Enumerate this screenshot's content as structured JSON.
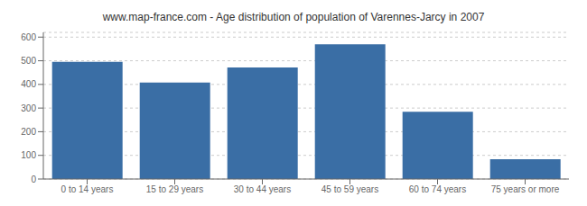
{
  "chart_data": {
    "type": "bar",
    "title": "www.map-france.com - Age distribution of population of Varennes-Jarcy in 2007",
    "categories": [
      "0 to 14 years",
      "15 to 29 years",
      "30 to 44 years",
      "45 to 59 years",
      "60 to 74 years",
      "75 years or more"
    ],
    "values": [
      495,
      408,
      472,
      570,
      284,
      84
    ],
    "color": "#3a6ea5",
    "ylim": [
      0,
      620
    ],
    "yticks": [
      0,
      100,
      200,
      300,
      400,
      500,
      600
    ],
    "grid": true
  }
}
